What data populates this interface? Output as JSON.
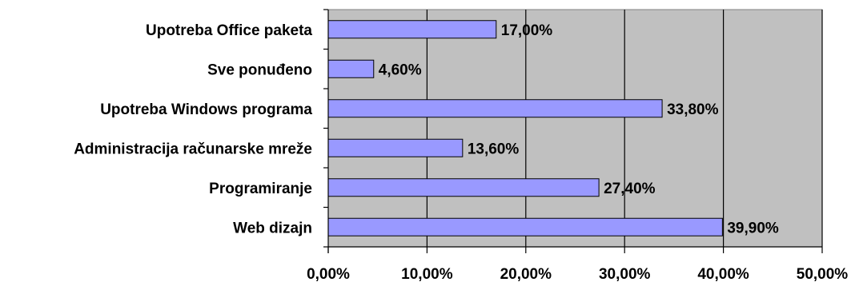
{
  "chart_data": {
    "type": "bar",
    "orientation": "horizontal",
    "categories": [
      "Upotreba Office paketa",
      "Sve ponuđeno",
      "Upotreba Windows programa",
      "Administracija računarske mreže",
      "Programiranje",
      "Web dizajn"
    ],
    "values": [
      17.0,
      4.6,
      33.8,
      13.6,
      27.4,
      39.9
    ],
    "data_labels": [
      "17,00%",
      "4,60%",
      "33,80%",
      "13,60%",
      "27,40%",
      "39,90%"
    ],
    "xlim": [
      0,
      50
    ],
    "x_ticks": [
      0,
      10,
      20,
      30,
      40,
      50
    ],
    "x_tick_labels": [
      "0,00%",
      "10,00%",
      "20,00%",
      "30,00%",
      "40,00%",
      "50,00%"
    ],
    "title": "",
    "xlabel": "",
    "ylabel": "",
    "grid": "vertical",
    "legend": "none",
    "colors": {
      "bar_fill": "#9999ff",
      "bar_stroke": "#000000",
      "plot_background": "#c0c0c0",
      "gridline": "#000000"
    }
  }
}
